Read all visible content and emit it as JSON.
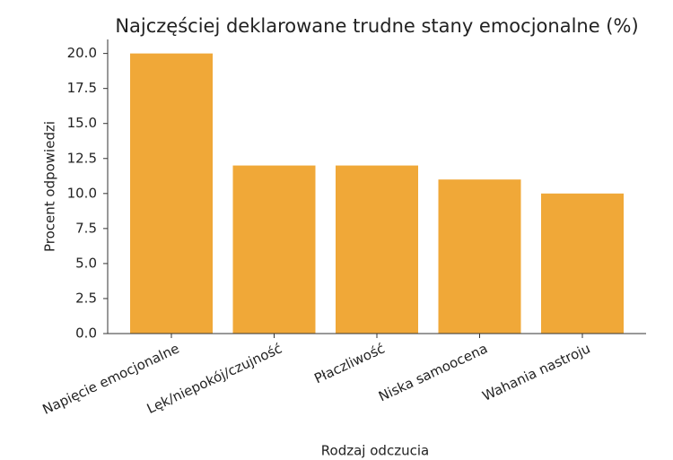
{
  "chart_data": {
    "type": "bar",
    "title": "Najczęściej deklarowane trudne stany emocjonalne (%)",
    "x_label": "Rodzaj odczucia",
    "y_label": "Procent odpowiedzi",
    "categories": [
      "Napięcie emocjonalne",
      "Lęk/niepokój/czujność",
      "Płaczliwość",
      "Niska samoocena",
      "Wahania nastroju"
    ],
    "values": [
      20,
      12,
      12,
      11,
      10
    ],
    "color": "#f0a838",
    "ylim": [
      0,
      21
    ],
    "yticks": [
      {
        "value": 0,
        "label": "0.0"
      },
      2.5,
      {
        "value": 5,
        "label": "5.0"
      },
      7.5,
      {
        "value": 10,
        "label": "10.0"
      },
      12.5,
      {
        "value": 15,
        "label": "15.0"
      },
      17.5,
      {
        "value": 20,
        "label": "20.0"
      }
    ],
    "grid": false
  }
}
